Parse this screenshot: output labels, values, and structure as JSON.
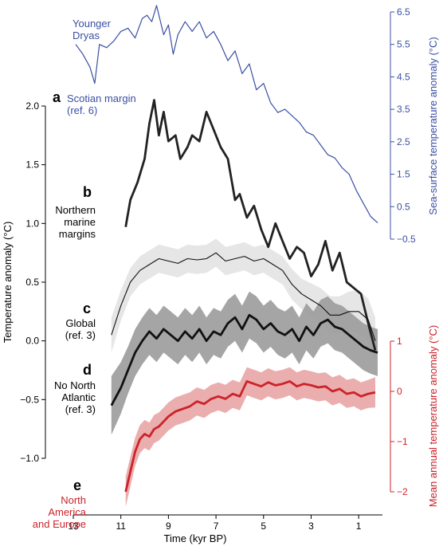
{
  "chart_data": {
    "type": "line",
    "xlabel": "Time (kyr BP)",
    "x_ticks": [
      "13",
      "11",
      "9",
      "7",
      "5",
      "3",
      "1"
    ],
    "xlim": [
      13.0,
      0.0
    ],
    "axes": [
      {
        "side": "left",
        "label": "Temperature anomaly (°C)",
        "ylim": [
          -1.0,
          2.0
        ],
        "ticks": [
          "−1.0",
          "−0.5",
          "0.0",
          "0.5",
          "1.0",
          "1.5",
          "2.0"
        ],
        "color": "#000000"
      },
      {
        "side": "right",
        "label": "Sea-surface temperature anomaly (°C)",
        "ylim": [
          -0.5,
          6.5
        ],
        "ticks": [
          "−0.5",
          "0.5",
          "1.5",
          "2.5",
          "3.5",
          "4.5",
          "5.5",
          "6.5"
        ],
        "color": "#3b4fa3"
      },
      {
        "side": "right-lower",
        "label": "Mean annual temperature anomaly (°C)",
        "ylim": [
          -2.0,
          1.0
        ],
        "ticks": [
          "−2",
          "−1",
          "0",
          "1"
        ],
        "color": "#cc2229"
      }
    ],
    "series": [
      {
        "panel": "a",
        "name": "Scotian margin (ref. 6)",
        "extra_label": "Younger Dryas",
        "axis": "right",
        "color": "#3b4fa3",
        "x": [
          12.9,
          12.6,
          12.3,
          12.1,
          11.9,
          11.6,
          11.3,
          11.0,
          10.7,
          10.4,
          10.1,
          9.9,
          9.7,
          9.5,
          9.2,
          9.0,
          8.8,
          8.6,
          8.3,
          8.0,
          7.7,
          7.4,
          7.1,
          6.8,
          6.5,
          6.2,
          5.9,
          5.6,
          5.3,
          5.0,
          4.7,
          4.4,
          4.1,
          3.8,
          3.5,
          3.2,
          2.9,
          2.6,
          2.3,
          2.0,
          1.7,
          1.4,
          1.1,
          0.8,
          0.5,
          0.2
        ],
        "y": [
          5.5,
          5.2,
          4.8,
          4.3,
          5.5,
          5.4,
          5.6,
          5.9,
          6.0,
          5.7,
          6.3,
          6.4,
          6.2,
          6.7,
          5.8,
          6.1,
          5.2,
          5.8,
          6.2,
          5.9,
          6.2,
          5.7,
          5.9,
          5.5,
          5.0,
          5.3,
          4.6,
          4.9,
          4.1,
          4.3,
          3.7,
          3.4,
          3.5,
          3.3,
          3.1,
          2.8,
          2.7,
          2.4,
          2.1,
          2.0,
          1.7,
          1.5,
          1.0,
          0.6,
          0.2,
          0.0
        ]
      },
      {
        "panel": "b",
        "name": "Northern marine margins",
        "axis": "left",
        "color": "#222222",
        "x": [
          10.8,
          10.6,
          10.3,
          10.0,
          9.8,
          9.6,
          9.4,
          9.2,
          9.0,
          8.7,
          8.5,
          8.2,
          8.0,
          7.7,
          7.4,
          7.1,
          6.8,
          6.5,
          6.2,
          6.0,
          5.7,
          5.4,
          5.1,
          4.8,
          4.5,
          4.2,
          3.9,
          3.6,
          3.3,
          3.0,
          2.7,
          2.4,
          2.1,
          1.8,
          1.5,
          1.2,
          0.9,
          0.6,
          0.3
        ],
        "y": [
          0.97,
          1.2,
          1.35,
          1.55,
          1.85,
          2.05,
          1.75,
          1.95,
          1.7,
          1.75,
          1.55,
          1.65,
          1.75,
          1.7,
          1.95,
          1.8,
          1.65,
          1.55,
          1.2,
          1.25,
          1.05,
          1.15,
          0.95,
          0.8,
          1.0,
          0.85,
          0.7,
          0.8,
          0.75,
          0.55,
          0.65,
          0.85,
          0.6,
          0.75,
          0.5,
          0.45,
          0.4,
          0.15,
          -0.08
        ]
      },
      {
        "panel": "c",
        "name": "Global (ref. 3)",
        "axis": "left",
        "color": "#111111",
        "band_color": "#e3e3e3",
        "x": [
          11.4,
          11.0,
          10.6,
          10.2,
          9.8,
          9.4,
          9.0,
          8.6,
          8.2,
          7.8,
          7.4,
          7.0,
          6.6,
          6.2,
          5.8,
          5.4,
          5.0,
          4.6,
          4.2,
          3.8,
          3.4,
          3.0,
          2.6,
          2.2,
          1.8,
          1.4,
          1.0,
          0.6,
          0.3
        ],
        "y": [
          0.05,
          0.3,
          0.5,
          0.6,
          0.65,
          0.7,
          0.68,
          0.66,
          0.7,
          0.69,
          0.7,
          0.75,
          0.68,
          0.7,
          0.72,
          0.68,
          0.7,
          0.65,
          0.6,
          0.48,
          0.4,
          0.35,
          0.3,
          0.22,
          0.22,
          0.25,
          0.25,
          0.18,
          0.0
        ],
        "band": [
          0.15,
          0.13,
          0.12,
          0.12,
          0.12,
          0.12,
          0.12,
          0.12,
          0.12,
          0.12,
          0.12,
          0.12,
          0.12,
          0.12,
          0.12,
          0.12,
          0.12,
          0.12,
          0.12,
          0.13,
          0.13,
          0.14,
          0.15,
          0.16,
          0.16,
          0.17,
          0.18,
          0.18,
          0.2
        ]
      },
      {
        "panel": "d",
        "name": "No North Atlantic (ref. 3)",
        "axis": "left",
        "color": "#111111",
        "band_color": "#9b9b9b",
        "x": [
          11.4,
          11.0,
          10.7,
          10.4,
          10.1,
          9.8,
          9.5,
          9.2,
          8.9,
          8.6,
          8.3,
          8.0,
          7.7,
          7.4,
          7.1,
          6.8,
          6.5,
          6.2,
          5.9,
          5.6,
          5.3,
          5.0,
          4.7,
          4.4,
          4.1,
          3.8,
          3.5,
          3.2,
          2.9,
          2.6,
          2.3,
          2.0,
          1.7,
          1.4,
          1.1,
          0.8,
          0.5,
          0.2
        ],
        "y": [
          -0.55,
          -0.4,
          -0.25,
          -0.1,
          0.0,
          0.08,
          0.02,
          0.1,
          0.05,
          0.0,
          0.08,
          0.02,
          0.1,
          0.0,
          0.08,
          0.05,
          0.15,
          0.2,
          0.1,
          0.22,
          0.18,
          0.1,
          0.15,
          0.08,
          0.05,
          0.1,
          0.0,
          0.12,
          0.05,
          0.15,
          0.18,
          0.12,
          0.1,
          0.05,
          0.0,
          -0.05,
          -0.08,
          -0.1
        ],
        "band": [
          0.25,
          0.22,
          0.2,
          0.2,
          0.2,
          0.2,
          0.2,
          0.2,
          0.2,
          0.2,
          0.2,
          0.2,
          0.2,
          0.2,
          0.2,
          0.2,
          0.2,
          0.2,
          0.2,
          0.2,
          0.2,
          0.2,
          0.2,
          0.2,
          0.2,
          0.2,
          0.2,
          0.2,
          0.2,
          0.2,
          0.2,
          0.2,
          0.2,
          0.2,
          0.2,
          0.2,
          0.2,
          0.2
        ]
      },
      {
        "panel": "e",
        "name": "North America and Europe",
        "axis": "right-lower",
        "color": "#cc2229",
        "band_color": "#e39394",
        "x": [
          10.8,
          10.6,
          10.4,
          10.2,
          10.0,
          9.8,
          9.6,
          9.4,
          9.2,
          9.0,
          8.7,
          8.4,
          8.1,
          7.8,
          7.5,
          7.2,
          6.9,
          6.6,
          6.3,
          6.0,
          5.7,
          5.4,
          5.1,
          4.8,
          4.5,
          4.2,
          3.9,
          3.6,
          3.3,
          3.0,
          2.7,
          2.4,
          2.1,
          1.8,
          1.5,
          1.2,
          0.9,
          0.6,
          0.3
        ],
        "y": [
          -2.0,
          -1.6,
          -1.2,
          -0.95,
          -0.85,
          -0.9,
          -0.75,
          -0.7,
          -0.6,
          -0.5,
          -0.4,
          -0.35,
          -0.3,
          -0.2,
          -0.25,
          -0.15,
          -0.1,
          -0.15,
          -0.05,
          -0.1,
          0.2,
          0.15,
          0.1,
          0.18,
          0.12,
          0.15,
          0.2,
          0.1,
          0.15,
          0.12,
          0.08,
          0.1,
          0.0,
          0.05,
          -0.05,
          -0.02,
          -0.1,
          -0.05,
          -0.02
        ],
        "band": [
          0.3,
          0.3,
          0.28,
          0.28,
          0.28,
          0.28,
          0.28,
          0.28,
          0.28,
          0.28,
          0.28,
          0.28,
          0.28,
          0.28,
          0.28,
          0.28,
          0.28,
          0.28,
          0.28,
          0.28,
          0.28,
          0.28,
          0.28,
          0.28,
          0.28,
          0.28,
          0.28,
          0.28,
          0.28,
          0.28,
          0.28,
          0.28,
          0.28,
          0.28,
          0.28,
          0.28,
          0.28,
          0.28,
          0.3
        ]
      }
    ]
  }
}
